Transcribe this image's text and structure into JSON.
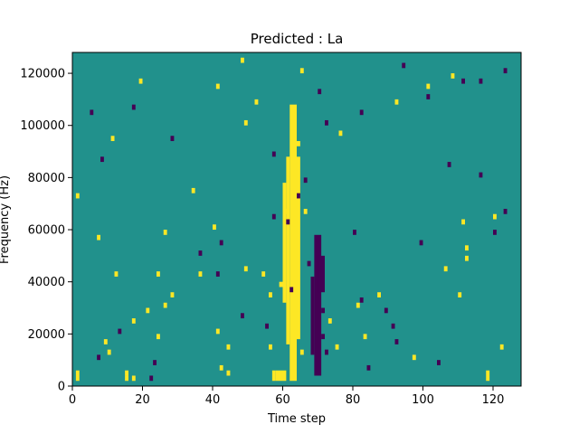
{
  "chart_data": {
    "type": "heatmap",
    "title": "Predicted : La",
    "xlabel": "Time step",
    "ylabel": "Frequency (Hz)",
    "xlim": [
      0,
      128
    ],
    "ylim": [
      0,
      128000
    ],
    "x_ticks": [
      "0",
      "20",
      "40",
      "60",
      "80",
      "100",
      "120"
    ],
    "y_ticks": [
      "0",
      "20000",
      "40000",
      "60000",
      "80000",
      "100000",
      "120000"
    ],
    "colormap": "viridis",
    "colors": {
      "background": "#21918c",
      "high": "#fde725",
      "low": "#440154"
    },
    "grid": false,
    "legend": "none",
    "n_bins": 64,
    "bin_width_hz": 2000,
    "default_value": "mid",
    "high_cells": [
      [
        15,
        1
      ],
      [
        17,
        1
      ],
      [
        15,
        2
      ],
      [
        44,
        2
      ],
      [
        42,
        3
      ],
      [
        63,
        4
      ],
      [
        97,
        5
      ],
      [
        10,
        6
      ],
      [
        44,
        7
      ],
      [
        56,
        7
      ],
      [
        75,
        7
      ],
      [
        9,
        8
      ],
      [
        24,
        9
      ],
      [
        41,
        10
      ],
      [
        73,
        12
      ],
      [
        21,
        14
      ],
      [
        26,
        15
      ],
      [
        28,
        17
      ],
      [
        56,
        17
      ],
      [
        87,
        17
      ],
      [
        110,
        17
      ],
      [
        24,
        21
      ],
      [
        49,
        22
      ],
      [
        106,
        22
      ],
      [
        112,
        26
      ],
      [
        26,
        29
      ],
      [
        40,
        30
      ],
      [
        60,
        33
      ],
      [
        66,
        33
      ],
      [
        34,
        37
      ],
      [
        64,
        46
      ],
      [
        76,
        48
      ],
      [
        52,
        54
      ],
      [
        41,
        57
      ],
      [
        19,
        58
      ],
      [
        65,
        60
      ],
      [
        48,
        62
      ],
      [
        65,
        6
      ],
      [
        122,
        7
      ],
      [
        83,
        9
      ],
      [
        17,
        12
      ],
      [
        81,
        15
      ],
      [
        59,
        19
      ],
      [
        12,
        21
      ],
      [
        36,
        21
      ],
      [
        54,
        21
      ],
      [
        112,
        24
      ],
      [
        7,
        28
      ],
      [
        111,
        31
      ],
      [
        120,
        32
      ],
      [
        1,
        36
      ],
      [
        11,
        47
      ],
      [
        49,
        50
      ],
      [
        92,
        54
      ],
      [
        101,
        57
      ],
      [
        108,
        59
      ]
    ],
    "low_cells": [
      [
        84,
        3
      ],
      [
        23,
        4
      ],
      [
        7,
        5
      ],
      [
        72,
        6
      ],
      [
        92,
        8
      ],
      [
        71,
        9
      ],
      [
        55,
        11
      ],
      [
        48,
        13
      ],
      [
        71,
        14
      ],
      [
        82,
        16
      ],
      [
        62,
        18
      ],
      [
        41,
        21
      ],
      [
        67,
        23
      ],
      [
        42,
        27
      ],
      [
        80,
        29
      ],
      [
        61,
        31
      ],
      [
        57,
        32
      ],
      [
        64,
        36
      ],
      [
        66,
        39
      ],
      [
        57,
        44
      ],
      [
        72,
        50
      ],
      [
        82,
        52
      ],
      [
        101,
        55
      ],
      [
        111,
        58
      ],
      [
        94,
        61
      ],
      [
        22,
        1
      ],
      [
        104,
        4
      ],
      [
        13,
        10
      ],
      [
        89,
        14
      ],
      [
        36,
        25
      ],
      [
        120,
        29
      ],
      [
        123,
        33
      ],
      [
        116,
        40
      ],
      [
        5,
        52
      ],
      [
        17,
        53
      ],
      [
        70,
        56
      ],
      [
        116,
        58
      ],
      [
        123,
        60
      ],
      [
        99,
        27
      ],
      [
        91,
        11
      ],
      [
        8,
        43
      ],
      [
        28,
        47
      ],
      [
        107,
        42
      ]
    ],
    "high_rects": [
      [
        1,
        2
      ],
      [
        57,
        58
      ],
      [
        118,
        119
      ]
    ]
  }
}
